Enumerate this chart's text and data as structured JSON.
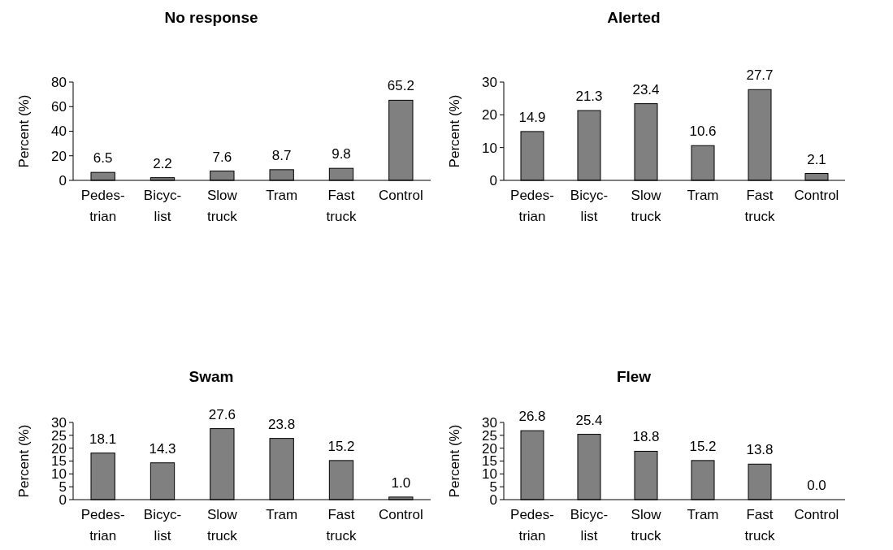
{
  "chart_data": [
    {
      "type": "bar",
      "title": "No response",
      "ylabel": "Percent (%)",
      "categories": [
        "Pedes-\ntrian",
        "Bicyc-\nlist",
        "Slow\ntruck",
        "Tram",
        "Fast\ntruck",
        "Control"
      ],
      "values": [
        6.5,
        2.2,
        7.6,
        8.7,
        9.8,
        65.2
      ],
      "value_labels": [
        "6.5",
        "2.2",
        "7.6",
        "8.7",
        "9.8",
        "65.2"
      ],
      "color": "#808080",
      "ylim": [
        0,
        80
      ],
      "yticks": [
        0,
        20,
        40,
        60,
        80
      ],
      "grid": false
    },
    {
      "type": "bar",
      "title": "Alerted",
      "ylabel": "Percent (%)",
      "categories": [
        "Pedes-\ntrian",
        "Bicyc-\nlist",
        "Slow\ntruck",
        "Tram",
        "Fast\ntruck",
        "Control"
      ],
      "values": [
        14.9,
        21.3,
        23.4,
        10.6,
        27.7,
        2.1
      ],
      "value_labels": [
        "14.9",
        "21.3",
        "23.4",
        "10.6",
        "27.7",
        "2.1"
      ],
      "color": "#808080",
      "ylim": [
        0,
        30
      ],
      "yticks": [
        0,
        10,
        20,
        30
      ],
      "grid": false
    },
    {
      "type": "bar",
      "title": "Swam",
      "ylabel": "Percent (%)",
      "categories": [
        "Pedes-\ntrian",
        "Bicyc-\nlist",
        "Slow\ntruck",
        "Tram",
        "Fast\ntruck",
        "Control"
      ],
      "values": [
        18.1,
        14.3,
        27.6,
        23.8,
        15.2,
        1.0
      ],
      "value_labels": [
        "18.1",
        "14.3",
        "27.6",
        "23.8",
        "15.2",
        "1.0"
      ],
      "color": "#808080",
      "ylim": [
        0,
        30
      ],
      "yticks": [
        0,
        5,
        10,
        15,
        20,
        25,
        30
      ],
      "grid": false
    },
    {
      "type": "bar",
      "title": "Flew",
      "ylabel": "Percent (%)",
      "categories": [
        "Pedes-\ntrian",
        "Bicyc-\nlist",
        "Slow\ntruck",
        "Tram",
        "Fast\ntruck",
        "Control"
      ],
      "values": [
        26.8,
        25.4,
        18.8,
        15.2,
        13.8,
        0.0
      ],
      "value_labels": [
        "26.8",
        "25.4",
        "18.8",
        "15.2",
        "13.8",
        "0.0"
      ],
      "color": "#808080",
      "ylim": [
        0,
        30
      ],
      "yticks": [
        0,
        5,
        10,
        15,
        20,
        25,
        30
      ],
      "grid": false
    }
  ]
}
